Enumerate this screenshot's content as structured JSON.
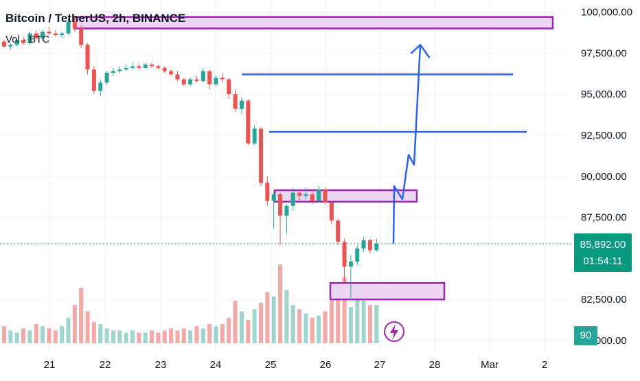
{
  "header": {
    "title": "Bitcoin / TetherUS, 2h, BINANCE",
    "volume_label": "Vol · BTC"
  },
  "price_badge": {
    "price": "85,892.00",
    "countdown": "01:54:11"
  },
  "volume_badge": {
    "value": "90"
  },
  "colors": {
    "up": "#26a69a",
    "down": "#ef5350",
    "up_volume": "#9fd5cf",
    "down_volume": "#f4a9a6",
    "zone_fill": "#ecd6f3",
    "zone_border": "#9c27b0",
    "drawing_line": "#2962ff",
    "last_price": "#089981"
  },
  "chart_data": {
    "type": "candlestick",
    "symbol": "Bitcoin / TetherUS",
    "interval": "2h",
    "exchange": "BINANCE",
    "y_ticks": [
      {
        "value": 100000,
        "label": "100,000.00"
      },
      {
        "value": 97500,
        "label": "97,500.00"
      },
      {
        "value": 95000,
        "label": "95,000.00"
      },
      {
        "value": 92500,
        "label": "92,500.00"
      },
      {
        "value": 90000,
        "label": "90,000.00"
      },
      {
        "value": 87500,
        "label": "87,500.00"
      },
      {
        "value": 82500,
        "label": "82,500.00"
      },
      {
        "value": 80000,
        "label": "80,000.00"
      }
    ],
    "ylim": [
      80000,
      100600
    ],
    "x_ticks": [
      "21",
      "22",
      "23",
      "24",
      "25",
      "26",
      "27",
      "28",
      "Mar",
      "2"
    ],
    "last_price": 85892,
    "candles": [
      [
        98200,
        98300,
        97800,
        97900
      ],
      [
        97900,
        98100,
        97700,
        98000
      ],
      [
        98000,
        98400,
        97900,
        98300
      ],
      [
        98300,
        98500,
        98000,
        98100
      ],
      [
        98100,
        98800,
        98000,
        98700
      ],
      [
        98700,
        98900,
        98300,
        98400
      ],
      [
        98400,
        98900,
        98300,
        98800
      ],
      [
        98800,
        99100,
        98600,
        98700
      ],
      [
        98700,
        98900,
        98500,
        98600
      ],
      [
        98600,
        98800,
        98400,
        98700
      ],
      [
        98700,
        99600,
        98600,
        99400
      ],
      [
        99400,
        99700,
        98800,
        99000
      ],
      [
        99000,
        99200,
        97800,
        98000
      ],
      [
        98000,
        98100,
        96200,
        96500
      ],
      [
        96500,
        96700,
        95000,
        95200
      ],
      [
        95200,
        95900,
        94900,
        95700
      ],
      [
        95700,
        96400,
        95600,
        96300
      ],
      [
        96300,
        96600,
        96100,
        96400
      ],
      [
        96400,
        96700,
        96300,
        96500
      ],
      [
        96500,
        96800,
        96400,
        96600
      ],
      [
        96600,
        96900,
        96500,
        96700
      ],
      [
        96700,
        96900,
        96500,
        96600
      ],
      [
        96600,
        96900,
        96500,
        96800
      ],
      [
        96800,
        96900,
        96600,
        96700
      ],
      [
        96700,
        96800,
        96500,
        96600
      ],
      [
        96600,
        96700,
        96300,
        96400
      ],
      [
        96400,
        96500,
        96100,
        96200
      ],
      [
        96200,
        96400,
        95800,
        95900
      ],
      [
        95900,
        96000,
        95500,
        95600
      ],
      [
        95600,
        96000,
        95500,
        95900
      ],
      [
        95900,
        96100,
        95700,
        95800
      ],
      [
        95800,
        96600,
        95700,
        96400
      ],
      [
        96400,
        96500,
        95300,
        95600
      ],
      [
        95600,
        96200,
        95500,
        96000
      ],
      [
        96000,
        96300,
        95700,
        95900
      ],
      [
        95900,
        96000,
        94700,
        95000
      ],
      [
        95000,
        95300,
        93900,
        94100
      ],
      [
        94100,
        94800,
        93800,
        94600
      ],
      [
        94600,
        94700,
        91900,
        92000
      ],
      [
        92000,
        93100,
        91900,
        92900
      ],
      [
        92900,
        93000,
        89400,
        89600
      ],
      [
        89600,
        90000,
        88200,
        88500
      ],
      [
        88500,
        89100,
        86800,
        88900
      ],
      [
        88900,
        89000,
        85800,
        87600
      ],
      [
        87600,
        88300,
        86500,
        88200
      ],
      [
        88200,
        89300,
        87900,
        89000
      ],
      [
        89000,
        89200,
        88500,
        88800
      ],
      [
        88800,
        89300,
        88600,
        88900
      ],
      [
        88900,
        89200,
        88300,
        88500
      ],
      [
        88500,
        89400,
        88400,
        89200
      ],
      [
        89200,
        89300,
        88300,
        88400
      ],
      [
        88400,
        88500,
        87100,
        87300
      ],
      [
        87300,
        87400,
        85800,
        86000
      ],
      [
        86000,
        86200,
        83500,
        84500
      ],
      [
        84500,
        85200,
        82400,
        84800
      ],
      [
        84800,
        85800,
        84600,
        85600
      ],
      [
        85600,
        86300,
        85400,
        86100
      ],
      [
        86100,
        86200,
        85300,
        85500
      ],
      [
        85500,
        86200,
        85400,
        85900
      ]
    ],
    "volumes": [
      "v",
      "v",
      "v",
      "v",
      "v",
      "v",
      "v",
      "v",
      "v",
      "v",
      "v",
      "v",
      "v",
      "v",
      "v",
      "v",
      "v",
      "v",
      "v",
      "v",
      "v",
      "v",
      "v",
      "v",
      "v",
      "v",
      "v",
      "v",
      "v",
      "v",
      "v",
      "v",
      "v",
      "v",
      "v",
      "v",
      "v",
      "v",
      "v",
      "v",
      "v",
      "v",
      "v",
      "v",
      "v",
      "v",
      "v",
      "v",
      "v",
      "v",
      "v",
      "v",
      "v",
      "v",
      "v",
      "v",
      "v",
      "v",
      "v"
    ],
    "zones": [
      {
        "from_price": 99000,
        "to_price": 99700
      },
      {
        "from_price": 88450,
        "to_price": 89150
      },
      {
        "from_price": 82500,
        "to_price": 83500
      }
    ],
    "levels": [
      96200,
      92700
    ],
    "projection_path": [
      85892,
      89400,
      88600,
      91300,
      90700,
      98000
    ]
  }
}
